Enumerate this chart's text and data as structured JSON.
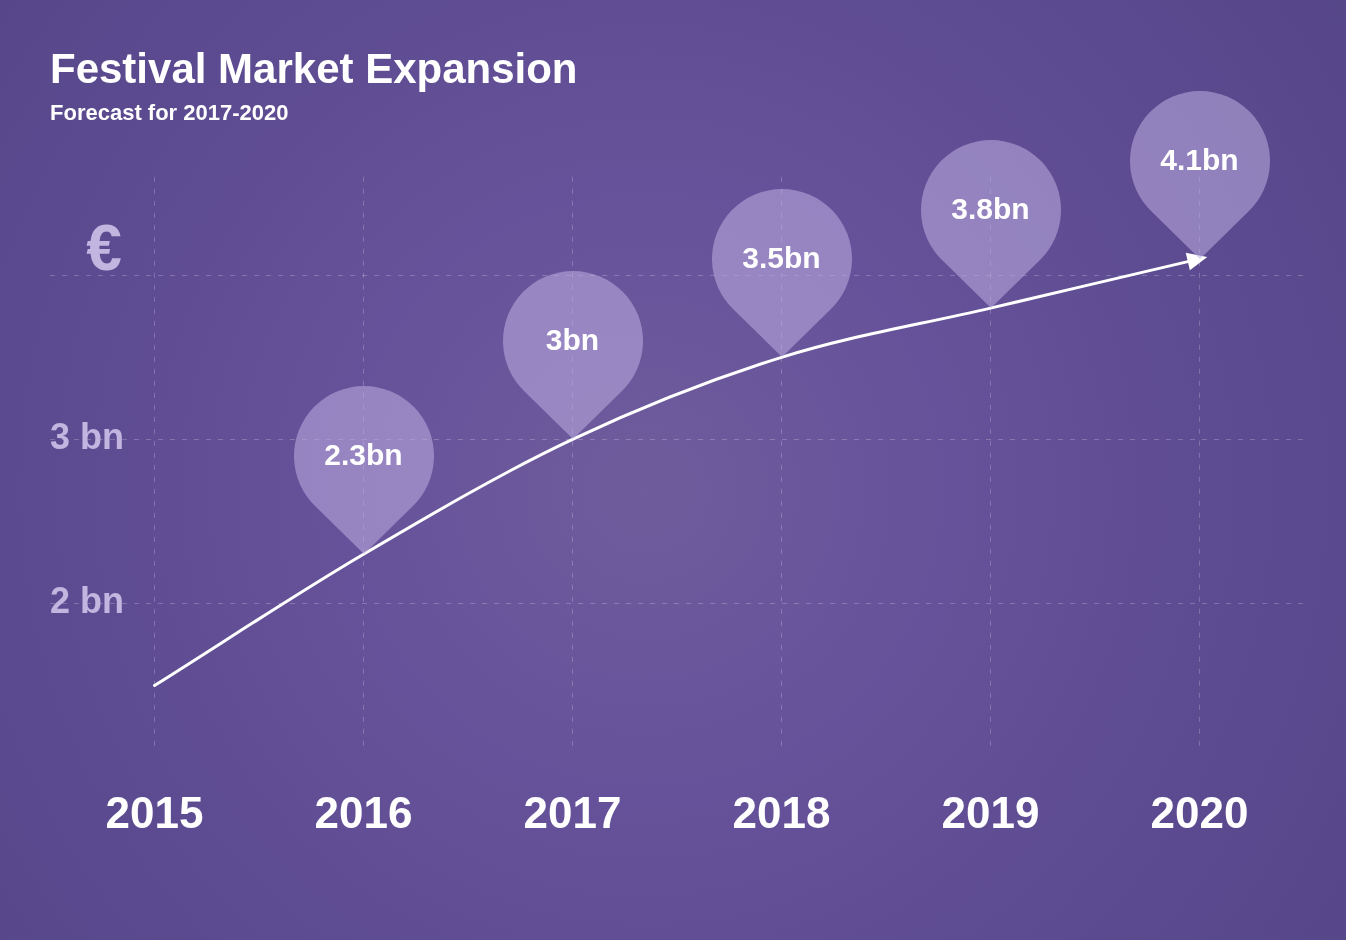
{
  "chart_data": {
    "type": "line",
    "title": "Festival Market Expansion",
    "subtitle": "Forecast for 2017-2020",
    "ylabel": "€",
    "categories": [
      "2015",
      "2016",
      "2017",
      "2018",
      "2019",
      "2020"
    ],
    "series": [
      {
        "color": "#ffffff",
        "values": [
          1.5,
          2.3,
          3,
          3.5,
          3.8,
          4.1
        ],
        "value_labels": [
          null,
          "2.3bn",
          "3bn",
          "3.5bn",
          "3.8bn",
          "4.1bn"
        ]
      }
    ],
    "ylim": [
      1.1,
      4.6
    ],
    "yticks": [
      {
        "value": 2,
        "label": "2 bn"
      },
      {
        "value": 3,
        "label": "3 bn"
      },
      {
        "value": 4,
        "label": null
      }
    ],
    "grid": true,
    "legend": false,
    "marker": "none",
    "line_style": "solid"
  }
}
